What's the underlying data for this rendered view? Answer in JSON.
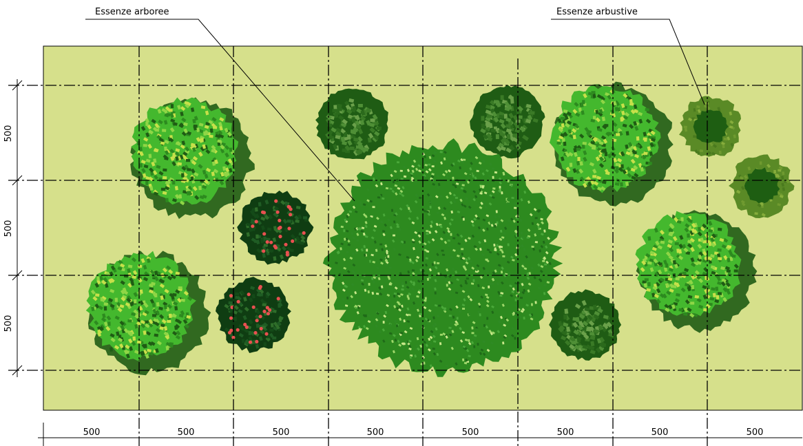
{
  "labels": {
    "trees": "Essenze arboree",
    "shrubs": "Essenze arbustive"
  },
  "dimensions": {
    "horizontal": [
      "500",
      "500",
      "500",
      "500",
      "500",
      "500",
      "500",
      "500"
    ],
    "vertical": [
      "500",
      "500",
      "500"
    ]
  },
  "colors": {
    "ground": "#d6e08b",
    "dark_green": "#1f5c14",
    "mid_green": "#2d8a1f",
    "bright_green": "#44b82e",
    "light_green": "#8fd646",
    "yellow_green": "#c7e04a",
    "fruit_red": "#e85050",
    "shrub_outer": "#5a8a26",
    "shrub_inner": "#1e5e12"
  }
}
